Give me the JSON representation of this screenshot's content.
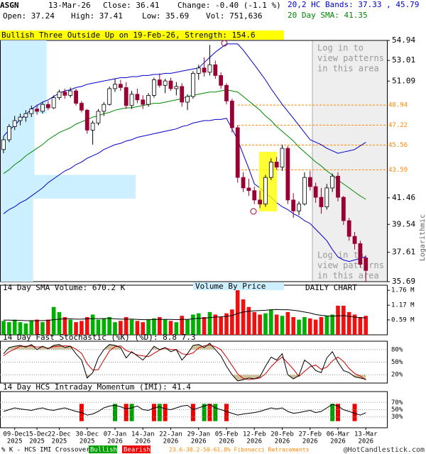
{
  "chart_data": {
    "type": "candlestick",
    "header": {
      "symbol": "ASGN",
      "date": "13-Mar-26",
      "close": "Close: 36.41",
      "change": "Change: -0.40 (-1.1 %)",
      "open": "Open: 37.24",
      "high": "High: 37.41",
      "low": "Low: 35.69",
      "volume": "Vol: 751,636",
      "bands": "20,2 HC Bands: 37.33 , 45.79",
      "sma": "20 Day SMA: 41.35"
    },
    "pattern": "Bullish Three Outside Up on 19-Feb-26, Strength: 154.6",
    "watermark": [
      "Log in to",
      "view patterns",
      "in this area"
    ],
    "y_axis_label": "Logarithmic",
    "categories": [
      null,
      null,
      "09-Dec",
      null,
      null,
      null,
      "15-Dec",
      null,
      null,
      null,
      "22-Dec",
      null,
      null,
      null,
      null,
      "30-Dec",
      null,
      null,
      null,
      null,
      "07-Jan",
      null,
      null,
      null,
      null,
      "14-Jan",
      null,
      null,
      null,
      null,
      "22-Jan",
      null,
      null,
      null,
      null,
      "29-Jan",
      null,
      null,
      null,
      null,
      "05-Feb",
      null,
      null,
      null,
      null,
      "12-Feb",
      null,
      null,
      null,
      null,
      "20-Feb",
      null,
      null,
      null,
      null,
      "27-Feb",
      null,
      null,
      null,
      null,
      "06-Mar",
      null,
      null,
      null,
      null,
      "13-Mar"
    ],
    "category_years": [
      null,
      null,
      "2025",
      null,
      null,
      null,
      "2025",
      null,
      null,
      null,
      "2025",
      null,
      null,
      null,
      null,
      "2025",
      null,
      null,
      null,
      null,
      "2026",
      null,
      null,
      null,
      null,
      "2026",
      null,
      null,
      null,
      null,
      "2026",
      null,
      null,
      null,
      null,
      "2026",
      null,
      null,
      null,
      null,
      "2026",
      null,
      null,
      null,
      null,
      "2026",
      null,
      null,
      null,
      null,
      "2026",
      null,
      null,
      null,
      null,
      "2026",
      null,
      null,
      null,
      null,
      "2026",
      null,
      null,
      null,
      null,
      "2026"
    ],
    "open": [
      45.2,
      46.0,
      47.1,
      47.6,
      47.9,
      48.2,
      48.6,
      48.4,
      49.0,
      48.7,
      49.6,
      50.1,
      49.8,
      50.2,
      49.1,
      48.5,
      46.8,
      47.4,
      48.4,
      49.0,
      50.4,
      50.8,
      50.5,
      48.9,
      49.9,
      49.4,
      49.0,
      49.8,
      51.2,
      50.7,
      51.1,
      50.4,
      50.6,
      49.2,
      49.7,
      51.8,
      52.3,
      51.9,
      52.6,
      51.6,
      50.7,
      49.3,
      47.0,
      43.0,
      42.2,
      42.0,
      41.3,
      41.0,
      43.0,
      44.2,
      43.8,
      45.3,
      41.3,
      40.5,
      41.0,
      43.0,
      42.3,
      41.5,
      40.8,
      42.2,
      43.1,
      41.5,
      39.8,
      38.7,
      38.2,
      37.24
    ],
    "high": [
      46.3,
      47.3,
      48.0,
      48.2,
      48.5,
      48.9,
      49.0,
      49.2,
      49.3,
      49.8,
      50.3,
      50.4,
      50.5,
      50.4,
      49.3,
      48.6,
      47.6,
      48.6,
      49.2,
      50.6,
      51.3,
      51.2,
      51.0,
      50.2,
      50.4,
      49.8,
      50.0,
      51.4,
      51.8,
      51.3,
      51.4,
      51.0,
      50.9,
      49.9,
      52.0,
      52.6,
      53.3,
      54.5,
      53.0,
      51.9,
      50.9,
      49.5,
      47.2,
      43.4,
      42.9,
      42.3,
      42.0,
      43.2,
      44.5,
      44.6,
      45.6,
      45.5,
      41.8,
      41.2,
      43.4,
      43.5,
      42.6,
      42.2,
      42.5,
      43.3,
      43.4,
      41.6,
      40.0,
      39.0,
      38.4,
      37.41
    ],
    "low": [
      44.9,
      45.8,
      46.8,
      47.2,
      47.5,
      47.9,
      48.1,
      48.2,
      48.5,
      48.6,
      49.4,
      49.5,
      49.6,
      48.9,
      48.3,
      46.5,
      45.6,
      47.2,
      48.0,
      48.9,
      50.1,
      50.2,
      48.6,
      48.6,
      49.1,
      48.6,
      48.8,
      49.6,
      50.5,
      50.0,
      50.2,
      49.8,
      48.8,
      48.5,
      49.5,
      51.2,
      51.5,
      51.6,
      51.3,
      50.4,
      49.0,
      46.6,
      42.6,
      41.9,
      41.6,
      41.0,
      40.7,
      40.8,
      42.8,
      43.6,
      43.5,
      41.0,
      40.0,
      40.2,
      40.9,
      42.0,
      41.1,
      40.3,
      40.6,
      41.9,
      41.2,
      39.5,
      38.4,
      37.8,
      36.6,
      35.69
    ],
    "close": [
      46.0,
      47.1,
      47.6,
      47.9,
      48.2,
      48.6,
      48.4,
      49.0,
      48.7,
      49.6,
      50.1,
      49.8,
      50.2,
      49.1,
      48.5,
      46.8,
      47.4,
      48.4,
      49.0,
      50.4,
      50.8,
      50.5,
      48.9,
      49.9,
      49.4,
      49.0,
      49.8,
      51.2,
      50.7,
      51.1,
      50.4,
      50.6,
      49.2,
      49.7,
      51.8,
      52.3,
      51.9,
      52.6,
      51.6,
      50.7,
      49.3,
      47.0,
      43.0,
      42.2,
      42.0,
      41.3,
      41.0,
      43.0,
      44.2,
      43.8,
      45.3,
      41.3,
      40.5,
      41.0,
      43.0,
      42.3,
      41.5,
      40.8,
      42.2,
      43.1,
      41.5,
      39.8,
      38.7,
      38.2,
      36.81,
      36.41
    ],
    "up_color": "#ffffff",
    "down_color": "#990033",
    "ylim": [
      35.69,
      54.94
    ],
    "log_scale": true,
    "yticks": [
      54.94,
      53.01,
      51.09,
      41.46,
      39.54,
      37.61,
      35.69
    ],
    "fib_levels": {
      "values": [
        48.94,
        47.22,
        45.56,
        43.59
      ],
      "color": "#ff8800"
    },
    "sma": {
      "color": "#008800",
      "values": [
        43.3,
        43.6,
        44.0,
        44.3,
        44.7,
        45.0,
        45.3,
        45.6,
        46.0,
        46.3,
        46.6,
        46.8,
        47.0,
        47.3,
        47.5,
        47.7,
        47.9,
        48.0,
        48.2,
        48.3,
        48.5,
        48.6,
        48.7,
        48.7,
        48.8,
        48.9,
        49.0,
        49.1,
        49.1,
        49.2,
        49.3,
        49.4,
        49.5,
        49.7,
        49.8,
        49.9,
        50.0,
        50.1,
        50.1,
        50.2,
        50.3,
        50.2,
        50.1,
        49.7,
        49.3,
        48.9,
        48.5,
        48.0,
        47.6,
        47.1,
        46.7,
        46.3,
        45.9,
        45.4,
        45.0,
        44.6,
        44.2,
        43.9,
        43.5,
        43.2,
        42.8,
        42.5,
        42.2,
        41.9,
        41.6,
        41.35
      ]
    },
    "bands": {
      "color": "#0000cc",
      "upper": [
        46.3,
        46.8,
        47.2,
        47.7,
        48.1,
        48.6,
        48.9,
        49.2,
        49.4,
        49.7,
        50.0,
        50.2,
        50.3,
        50.5,
        50.6,
        50.8,
        50.9,
        51.0,
        51.1,
        51.2,
        51.3,
        51.4,
        51.4,
        51.5,
        51.5,
        51.6,
        51.6,
        51.7,
        51.7,
        51.8,
        51.8,
        51.9,
        52.0,
        52.1,
        52.2,
        52.3,
        52.8,
        53.3,
        53.8,
        54.2,
        54.6,
        54.6,
        54.6,
        54.0,
        53.3,
        52.6,
        51.9,
        51.2,
        50.4,
        49.7,
        49.0,
        48.4,
        47.8,
        47.2,
        46.6,
        46.0,
        45.8,
        45.6,
        45.3,
        45.1,
        44.9,
        45.0,
        45.1,
        45.2,
        45.5,
        45.79
      ],
      "lower": [
        40.3,
        40.6,
        40.8,
        41.1,
        41.3,
        41.6,
        41.9,
        42.2,
        42.6,
        42.9,
        43.2,
        43.5,
        43.7,
        44.0,
        44.2,
        44.5,
        44.7,
        44.9,
        45.2,
        45.4,
        45.6,
        45.7,
        45.9,
        46.0,
        46.2,
        46.3,
        46.4,
        46.5,
        46.6,
        46.7,
        46.8,
        46.9,
        47.1,
        47.2,
        47.4,
        47.5,
        47.6,
        47.6,
        47.7,
        47.7,
        47.8,
        46.9,
        46.0,
        44.8,
        43.7,
        42.5,
        42.2,
        41.8,
        41.5,
        41.1,
        40.8,
        40.6,
        40.3,
        40.1,
        39.8,
        39.6,
        39.2,
        38.8,
        38.4,
        37.8,
        37.3,
        37.1,
        37.0,
        37.1,
        37.2,
        37.33
      ]
    },
    "volume_by_price": {
      "color": "#ccf0ff",
      "bins": [
        54.94,
        48.2,
        43.2,
        41.4,
        35.69
      ],
      "values": [
        34,
        25,
        100,
        24
      ]
    },
    "volume": {
      "label": "14 Day SMA Volume: 670.2 K",
      "vbp_label": "Volume By Price",
      "chart_label": "DAILY CHART",
      "up_color": "#00b000",
      "down_color": "#ee1111",
      "sma_color": "#000000",
      "ylim": [
        0,
        1.96
      ],
      "yticks": [
        {
          "value": 1.76,
          "label": "1.76 M"
        },
        {
          "value": 1.17,
          "label": "1.17 M"
        },
        {
          "value": 0.59,
          "label": "0.59 M"
        }
      ],
      "values": [
        0.55,
        0.5,
        0.6,
        0.5,
        0.45,
        0.55,
        0.6,
        0.5,
        0.6,
        1.1,
        0.9,
        0.7,
        0.6,
        0.5,
        0.55,
        0.7,
        0.8,
        0.6,
        0.65,
        0.7,
        0.5,
        0.55,
        0.7,
        0.6,
        0.55,
        0.5,
        0.6,
        0.65,
        0.7,
        0.6,
        0.55,
        0.5,
        0.75,
        0.6,
        0.8,
        0.85,
        0.7,
        0.9,
        0.8,
        0.7,
        0.85,
        1.0,
        1.76,
        1.4,
        1.1,
        0.9,
        0.8,
        0.85,
        1.0,
        0.8,
        0.75,
        0.9,
        0.7,
        0.6,
        0.7,
        0.65,
        0.6,
        0.7,
        0.75,
        0.8,
        1.15,
        1.15,
        0.9,
        0.8,
        0.7,
        0.75
      ],
      "sma": [
        0.58,
        0.58,
        0.57,
        0.57,
        0.56,
        0.56,
        0.56,
        0.56,
        0.57,
        0.6,
        0.62,
        0.63,
        0.63,
        0.62,
        0.62,
        0.63,
        0.64,
        0.64,
        0.64,
        0.65,
        0.63,
        0.62,
        0.62,
        0.62,
        0.61,
        0.6,
        0.6,
        0.61,
        0.61,
        0.61,
        0.61,
        0.6,
        0.61,
        0.61,
        0.63,
        0.65,
        0.66,
        0.68,
        0.7,
        0.71,
        0.73,
        0.76,
        0.84,
        0.9,
        0.93,
        0.95,
        0.96,
        0.97,
        0.99,
        1.0,
        0.99,
        0.99,
        0.97,
        0.94,
        0.9,
        0.86,
        0.8,
        0.77,
        0.75,
        0.74,
        0.75,
        0.76,
        0.73,
        0.7,
        0.68,
        0.67
      ]
    },
    "stochastic": {
      "label": "14 Day Fast Stochastic (%K) (%D): 8.8 7.3",
      "k_color": "#000000",
      "d_color": "#cc0000",
      "shade_color": "#c8b98a",
      "ylim": [
        0,
        100
      ],
      "yticks": [
        {
          "value": 80,
          "label": "80%"
        },
        {
          "value": 50,
          "label": "50%"
        },
        {
          "value": 20,
          "label": "20%"
        }
      ],
      "k": [
        70,
        85,
        88,
        90,
        86,
        92,
        80,
        88,
        82,
        90,
        92,
        85,
        88,
        70,
        55,
        12,
        25,
        60,
        80,
        92,
        90,
        85,
        60,
        75,
        65,
        55,
        70,
        88,
        80,
        85,
        75,
        80,
        55,
        70,
        90,
        92,
        85,
        95,
        80,
        65,
        40,
        20,
        5,
        8,
        12,
        10,
        15,
        40,
        62,
        55,
        70,
        20,
        10,
        18,
        55,
        45,
        30,
        25,
        60,
        75,
        50,
        30,
        25,
        15,
        12,
        8.8
      ],
      "d": [
        65,
        75,
        81,
        88,
        88,
        89,
        86,
        87,
        83,
        87,
        88,
        89,
        88,
        81,
        71,
        46,
        31,
        32,
        55,
        77,
        87,
        89,
        78,
        73,
        67,
        65,
        63,
        71,
        79,
        84,
        80,
        80,
        70,
        68,
        72,
        84,
        89,
        91,
        87,
        80,
        62,
        42,
        22,
        11,
        8,
        10,
        12,
        22,
        39,
        52,
        62,
        48,
        33,
        16,
        28,
        39,
        43,
        33,
        38,
        53,
        62,
        52,
        35,
        23,
        17,
        7.3
      ]
    },
    "imi": {
      "label": "14 Day HCS Intraday Momentum (IMI): 41.4",
      "color": "#000000",
      "ylim": [
        0,
        100
      ],
      "yticks": [
        {
          "value": 70,
          "label": "70%"
        },
        {
          "value": 50,
          "label": "50%"
        },
        {
          "value": 30,
          "label": "30%"
        }
      ],
      "values": [
        45,
        50,
        55,
        52,
        50,
        48,
        52,
        55,
        50,
        48,
        52,
        55,
        50,
        45,
        42,
        35,
        38,
        45,
        55,
        60,
        62,
        58,
        52,
        55,
        60,
        50,
        48,
        55,
        58,
        52,
        50,
        55,
        60,
        62,
        50,
        55,
        60,
        65,
        55,
        50,
        45,
        40,
        35,
        38,
        40,
        42,
        45,
        50,
        55,
        52,
        55,
        45,
        40,
        42,
        45,
        48,
        42,
        45,
        55,
        65,
        60,
        50,
        45,
        40,
        35,
        41.4
      ],
      "signals": [
        null,
        null,
        null,
        null,
        null,
        null,
        null,
        null,
        null,
        null,
        null,
        null,
        null,
        null,
        "Bearish",
        null,
        null,
        null,
        null,
        null,
        "Bullish",
        null,
        "Bearish",
        "Bullish",
        null,
        null,
        null,
        "Bearish",
        "Bullish",
        "Bearish",
        null,
        null,
        null,
        null,
        "Bearish",
        null,
        "Bullish",
        "Bearish",
        "Bullish",
        null,
        "Bearish",
        null,
        null,
        null,
        null,
        null,
        null,
        null,
        null,
        null,
        null,
        null,
        null,
        null,
        null,
        null,
        null,
        null,
        null,
        "Bullish",
        "Bearish",
        null,
        null,
        "Bearish",
        null,
        null
      ]
    },
    "legend": {
      "title": "% K - HCS IMI Crossover,",
      "entries": [
        {
          "label": "Bullish",
          "color": "#00a000"
        },
        {
          "label": "Bearish",
          "color": "#ee0000"
        }
      ],
      "fib_note": "23.6-38.2-50-61.8% Fibonacci Retracements",
      "credit": "@HotCandlestick.com"
    }
  }
}
